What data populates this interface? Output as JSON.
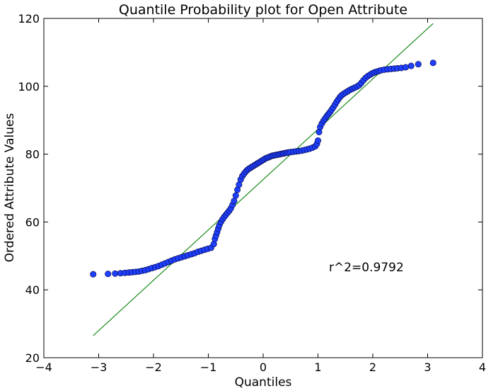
{
  "chart_data": {
    "type": "scatter",
    "title": "Quantile Probability plot for Open Attribute",
    "xlabel": "Quantiles",
    "ylabel": "Ordered Attribute Values",
    "xlim": [
      -4,
      4
    ],
    "ylim": [
      20,
      120
    ],
    "x_ticks": [
      -4,
      -3,
      -2,
      -1,
      0,
      1,
      2,
      3,
      4
    ],
    "y_ticks": [
      20,
      40,
      60,
      80,
      100,
      120
    ],
    "grid": false,
    "annotation": "r^2=0.9792",
    "annotation_position": [
      1.2,
      45.5
    ],
    "colors": {
      "points": "#1f3fff",
      "point_edge": "#000033",
      "fit_line": "#1a8a1a"
    },
    "fit_line": {
      "x": [
        -3.1,
        3.1
      ],
      "y": [
        26.5,
        118.5
      ]
    },
    "points": {
      "x": [
        -3.1,
        -2.83,
        -2.7,
        -2.6,
        -2.52,
        -2.45,
        -2.39,
        -2.33,
        -2.27,
        -2.21,
        -2.15,
        -2.09,
        -2.03,
        -1.97,
        -1.91,
        -1.85,
        -1.79,
        -1.73,
        -1.67,
        -1.61,
        -1.55,
        -1.49,
        -1.43,
        -1.37,
        -1.31,
        -1.25,
        -1.19,
        -1.13,
        -1.07,
        -1.01,
        -0.95,
        -0.9,
        -0.88,
        -0.86,
        -0.84,
        -0.82,
        -0.8,
        -0.77,
        -0.74,
        -0.71,
        -0.68,
        -0.65,
        -0.62,
        -0.59,
        -0.56,
        -0.53,
        -0.5,
        -0.47,
        -0.44,
        -0.41,
        -0.38,
        -0.35,
        -0.32,
        -0.29,
        -0.26,
        -0.23,
        -0.2,
        -0.17,
        -0.14,
        -0.11,
        -0.08,
        -0.05,
        -0.02,
        0.01,
        0.04,
        0.07,
        0.1,
        0.13,
        0.16,
        0.19,
        0.22,
        0.25,
        0.28,
        0.31,
        0.34,
        0.37,
        0.4,
        0.43,
        0.46,
        0.5,
        0.55,
        0.6,
        0.65,
        0.7,
        0.75,
        0.8,
        0.85,
        0.9,
        0.95,
        0.98,
        1.0,
        1.02,
        1.04,
        1.07,
        1.1,
        1.13,
        1.16,
        1.19,
        1.22,
        1.25,
        1.28,
        1.31,
        1.34,
        1.37,
        1.4,
        1.43,
        1.47,
        1.51,
        1.55,
        1.59,
        1.63,
        1.67,
        1.71,
        1.75,
        1.79,
        1.83,
        1.87,
        1.91,
        1.95,
        1.99,
        2.03,
        2.07,
        2.11,
        2.15,
        2.21,
        2.27,
        2.33,
        2.39,
        2.45,
        2.52,
        2.6,
        2.7,
        2.83,
        3.1
      ],
      "y": [
        44.6,
        44.7,
        44.8,
        44.9,
        45.0,
        45.1,
        45.2,
        45.3,
        45.4,
        45.6,
        45.8,
        46.1,
        46.4,
        46.7,
        47.0,
        47.4,
        47.8,
        48.2,
        48.6,
        49.0,
        49.3,
        49.6,
        49.9,
        50.2,
        50.5,
        50.8,
        51.2,
        51.5,
        51.8,
        52.1,
        52.4,
        53.5,
        55.0,
        56.0,
        57.0,
        58.0,
        59.0,
        60.0,
        60.8,
        61.5,
        62.1,
        62.7,
        63.3,
        64.0,
        65.0,
        66.2,
        67.8,
        69.5,
        71.0,
        72.5,
        73.5,
        74.2,
        74.8,
        75.3,
        75.7,
        76.0,
        76.3,
        76.6,
        76.9,
        77.2,
        77.5,
        77.8,
        78.1,
        78.4,
        78.7,
        78.9,
        79.1,
        79.3,
        79.5,
        79.6,
        79.7,
        79.8,
        79.9,
        80.0,
        80.1,
        80.2,
        80.3,
        80.4,
        80.5,
        80.6,
        80.7,
        80.8,
        80.9,
        81.0,
        81.2,
        81.4,
        81.6,
        81.9,
        82.3,
        83.0,
        84.0,
        86.5,
        88.0,
        89.0,
        89.8,
        90.5,
        91.2,
        91.8,
        92.4,
        93.1,
        93.8,
        94.6,
        95.4,
        96.1,
        96.8,
        97.3,
        97.8,
        98.2,
        98.6,
        99.0,
        99.3,
        99.6,
        99.9,
        100.3,
        101.0,
        101.8,
        102.5,
        103.0,
        103.4,
        103.8,
        104.1,
        104.3,
        104.5,
        104.7,
        104.9,
        105.0,
        105.1,
        105.2,
        105.3,
        105.4,
        105.6,
        106.0,
        106.5,
        106.9
      ]
    }
  }
}
